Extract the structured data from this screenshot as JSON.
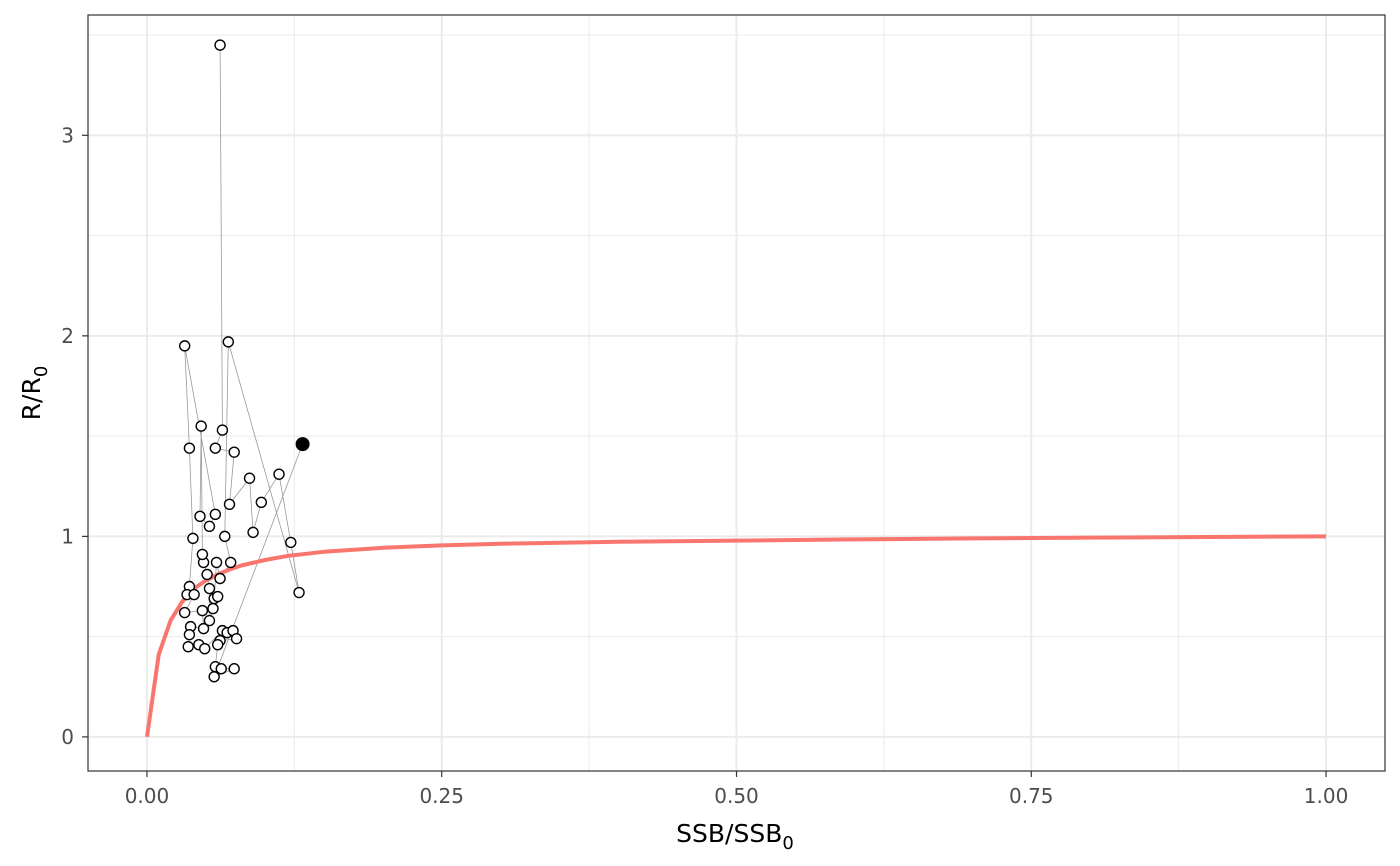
{
  "chart_data": {
    "type": "scatter",
    "xlabel": {
      "main": "SSB/SSB",
      "sub": "0"
    },
    "ylabel": {
      "main": "R/R",
      "sub": "0"
    },
    "xlim": [
      -0.05,
      1.05
    ],
    "ylim": [
      -0.17,
      3.6
    ],
    "x_ticks": [
      0.0,
      0.25,
      0.5,
      0.75,
      1.0
    ],
    "x_tick_labels": [
      "0.00",
      "0.25",
      "0.50",
      "0.75",
      "1.00"
    ],
    "y_ticks": [
      0,
      1,
      2,
      3
    ],
    "y_tick_labels": [
      "0",
      "1",
      "2",
      "3"
    ],
    "grid": true,
    "colors": {
      "curve": "#F8766D",
      "points": "#000000",
      "path": "#999999",
      "grid": "#ebebeb",
      "panel_border": "#333333"
    },
    "curve": {
      "name": "",
      "x": [
        0,
        0.01,
        0.02,
        0.03,
        0.04,
        0.05,
        0.06,
        0.07,
        0.08,
        0.1,
        0.12,
        0.15,
        0.2,
        0.25,
        0.3,
        0.4,
        0.5,
        0.6,
        0.7,
        0.8,
        0.9,
        1.0
      ],
      "y": [
        0,
        0.41,
        0.58,
        0.675,
        0.74,
        0.78,
        0.81,
        0.835,
        0.855,
        0.882,
        0.903,
        0.923,
        0.943,
        0.955,
        0.963,
        0.973,
        0.979,
        0.985,
        0.99,
        0.994,
        0.997,
        1.0
      ]
    },
    "points": [
      {
        "x": 0.062,
        "y": 3.45
      },
      {
        "x": 0.064,
        "y": 1.53
      },
      {
        "x": 0.058,
        "y": 1.44
      },
      {
        "x": 0.074,
        "y": 1.42
      },
      {
        "x": 0.07,
        "y": 1.16
      },
      {
        "x": 0.087,
        "y": 1.29
      },
      {
        "x": 0.09,
        "y": 1.02
      },
      {
        "x": 0.097,
        "y": 1.17
      },
      {
        "x": 0.112,
        "y": 1.31
      },
      {
        "x": 0.122,
        "y": 0.97
      },
      {
        "x": 0.129,
        "y": 0.72
      },
      {
        "x": 0.069,
        "y": 1.97
      },
      {
        "x": 0.066,
        "y": 1.0
      },
      {
        "x": 0.071,
        "y": 0.87
      },
      {
        "x": 0.062,
        "y": 0.79
      },
      {
        "x": 0.059,
        "y": 0.87
      },
      {
        "x": 0.057,
        "y": 0.69
      },
      {
        "x": 0.06,
        "y": 0.7
      },
      {
        "x": 0.056,
        "y": 0.64
      },
      {
        "x": 0.053,
        "y": 0.58
      },
      {
        "x": 0.053,
        "y": 0.74
      },
      {
        "x": 0.051,
        "y": 0.81
      },
      {
        "x": 0.048,
        "y": 0.87
      },
      {
        "x": 0.047,
        "y": 0.91
      },
      {
        "x": 0.046,
        "y": 1.55
      },
      {
        "x": 0.045,
        "y": 1.1
      },
      {
        "x": 0.053,
        "y": 1.05
      },
      {
        "x": 0.058,
        "y": 1.11
      },
      {
        "x": 0.032,
        "y": 1.95
      },
      {
        "x": 0.036,
        "y": 1.44
      },
      {
        "x": 0.039,
        "y": 0.99
      },
      {
        "x": 0.036,
        "y": 0.75
      },
      {
        "x": 0.034,
        "y": 0.71
      },
      {
        "x": 0.04,
        "y": 0.71
      },
      {
        "x": 0.032,
        "y": 0.62
      },
      {
        "x": 0.047,
        "y": 0.63
      },
      {
        "x": 0.048,
        "y": 0.54
      },
      {
        "x": 0.037,
        "y": 0.55
      },
      {
        "x": 0.036,
        "y": 0.51
      },
      {
        "x": 0.035,
        "y": 0.45
      },
      {
        "x": 0.044,
        "y": 0.46
      },
      {
        "x": 0.049,
        "y": 0.44
      },
      {
        "x": 0.064,
        "y": 0.53
      },
      {
        "x": 0.068,
        "y": 0.52
      },
      {
        "x": 0.073,
        "y": 0.53
      },
      {
        "x": 0.076,
        "y": 0.49
      },
      {
        "x": 0.062,
        "y": 0.48
      },
      {
        "x": 0.06,
        "y": 0.46
      },
      {
        "x": 0.058,
        "y": 0.35
      },
      {
        "x": 0.063,
        "y": 0.34
      },
      {
        "x": 0.074,
        "y": 0.34
      },
      {
        "x": 0.057,
        "y": 0.3
      }
    ],
    "final_point": {
      "x": 0.132,
      "y": 1.46
    }
  }
}
